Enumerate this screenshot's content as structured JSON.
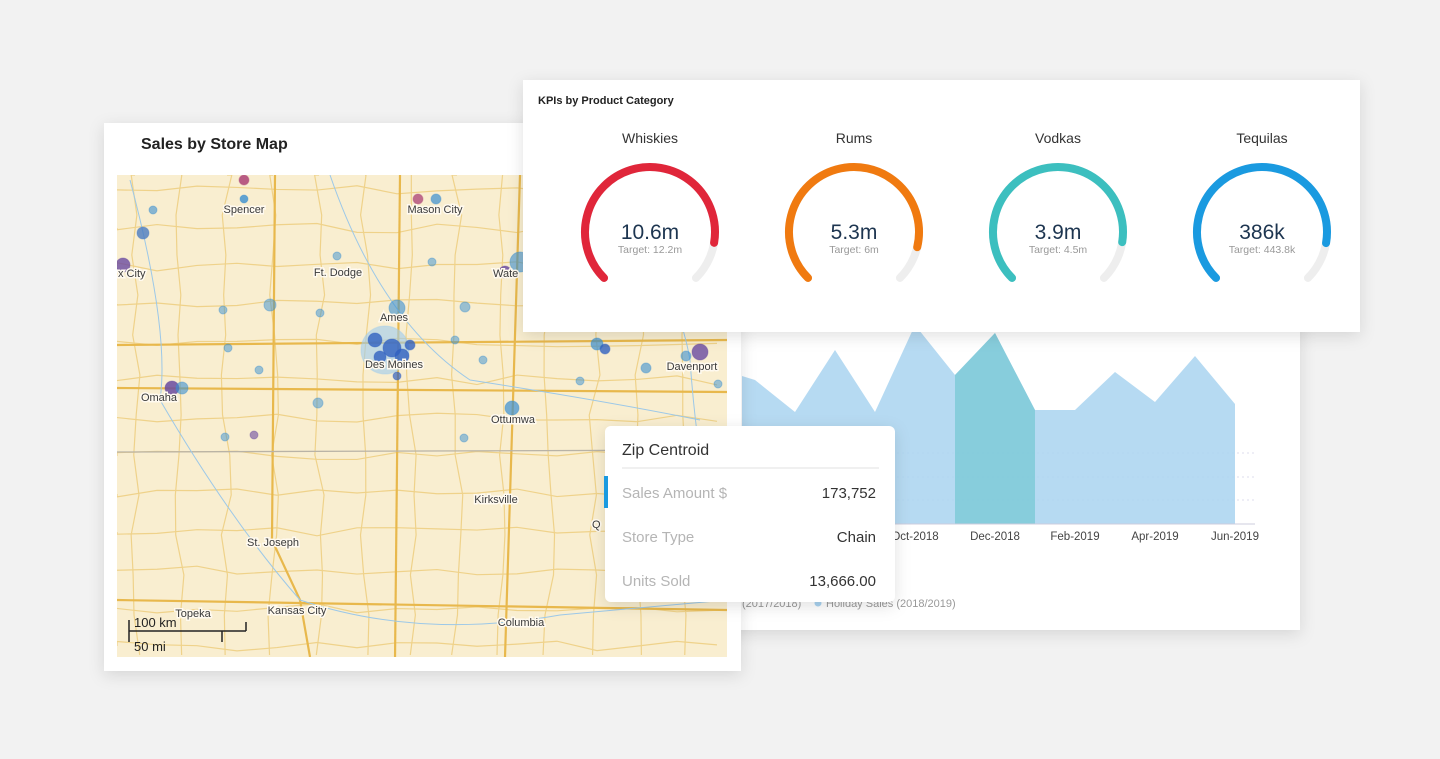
{
  "map_panel": {
    "title": "Sales by Store Map",
    "labels": [
      "Spencer",
      "Mason City",
      "x City",
      "Ft. Dodge",
      "Wate",
      "Ames",
      "Des Moines",
      "Omaha",
      "Davenport",
      "Ottumwa",
      "Kirksville",
      "St. Joseph",
      "Topeka",
      "Kansas City",
      "Columbia",
      "Q"
    ],
    "scale": [
      "100 km",
      "50 mi"
    ]
  },
  "kpis": {
    "title": "KPIs by Product Category",
    "items": [
      {
        "name": "Whiskies",
        "value": 10600000,
        "value_label": "10.6m",
        "target": 12200000,
        "target_label": "Target: 12.2m",
        "color": "#e0263a"
      },
      {
        "name": "Rums",
        "value": 5300000,
        "value_label": "5.3m",
        "target": 6000000,
        "target_label": "Target: 6m",
        "color": "#f07a10"
      },
      {
        "name": "Vodkas",
        "value": 3900000,
        "value_label": "3.9m",
        "target": 4500000,
        "target_label": "Target: 4.5m",
        "color": "#3cbfbf"
      },
      {
        "name": "Tequilas",
        "value": 386000,
        "value_label": "386k",
        "target": 443800,
        "target_label": "Target: 443.8k",
        "color": "#1a9ae0"
      }
    ]
  },
  "tooltip": {
    "title": "Zip Centroid",
    "rows": [
      [
        "Sales Amount $",
        "173,752"
      ],
      [
        "Store Type",
        "Chain"
      ],
      [
        "Units Sold",
        "13,666.00"
      ]
    ]
  },
  "sales_chart": {
    "type": "area",
    "categories": [
      null,
      null,
      null,
      null,
      "Oct-2018",
      null,
      "Dec-2018",
      null,
      "Feb-2019",
      null,
      "Apr-2019",
      null,
      "Jun-2019"
    ],
    "series": [
      {
        "name": "Holiday Sales (2018/2019)",
        "color": "#a9d3f0",
        "values": [
          144,
          112,
          174,
          112,
          199,
          149,
          191,
          114,
          114,
          152,
          122,
          168,
          120
        ]
      }
    ],
    "other_legend_text": "(2017/2018)",
    "ylim": [
      0,
      220
    ]
  }
}
